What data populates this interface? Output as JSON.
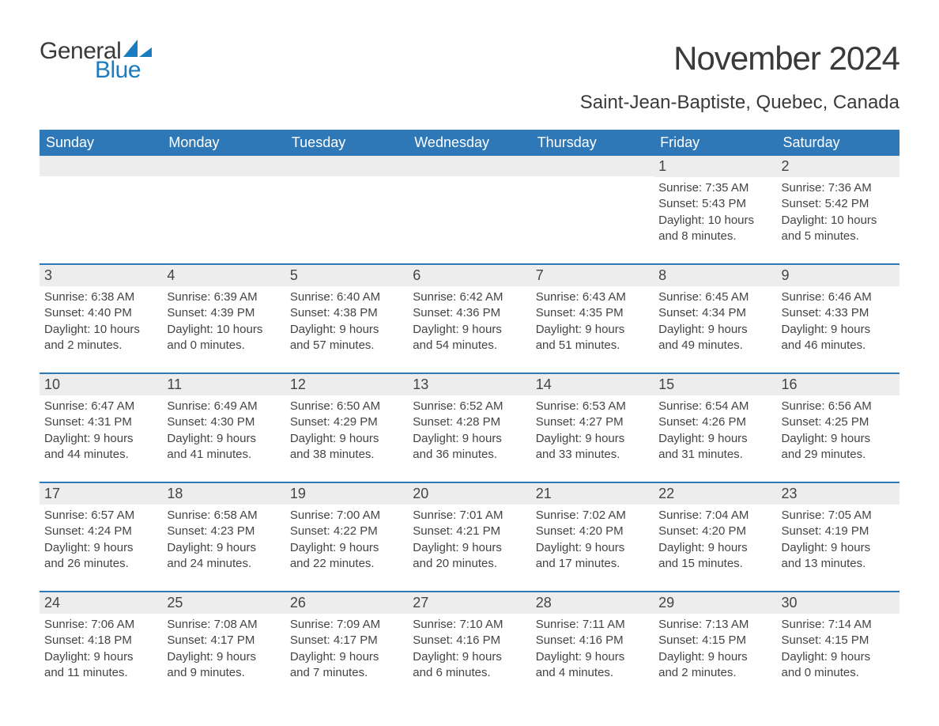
{
  "logo": {
    "text1": "General",
    "text2": "Blue"
  },
  "header": {
    "month_title": "November 2024",
    "location": "Saint-Jean-Baptiste, Quebec, Canada"
  },
  "colors": {
    "header_blue": "#2f78b7",
    "accent_blue": "#1a7bbf",
    "cell_bg": "#ededed",
    "text_dark": "#3a3a3a",
    "page_bg": "#ffffff"
  },
  "weekdays": [
    "Sunday",
    "Monday",
    "Tuesday",
    "Wednesday",
    "Thursday",
    "Friday",
    "Saturday"
  ],
  "weeks": [
    [
      {
        "blank": true
      },
      {
        "blank": true
      },
      {
        "blank": true
      },
      {
        "blank": true
      },
      {
        "blank": true
      },
      {
        "n": "1",
        "sunrise": "Sunrise: 7:35 AM",
        "sunset": "Sunset: 5:43 PM",
        "d1": "Daylight: 10 hours",
        "d2": "and 8 minutes."
      },
      {
        "n": "2",
        "sunrise": "Sunrise: 7:36 AM",
        "sunset": "Sunset: 5:42 PM",
        "d1": "Daylight: 10 hours",
        "d2": "and 5 minutes."
      }
    ],
    [
      {
        "n": "3",
        "sunrise": "Sunrise: 6:38 AM",
        "sunset": "Sunset: 4:40 PM",
        "d1": "Daylight: 10 hours",
        "d2": "and 2 minutes."
      },
      {
        "n": "4",
        "sunrise": "Sunrise: 6:39 AM",
        "sunset": "Sunset: 4:39 PM",
        "d1": "Daylight: 10 hours",
        "d2": "and 0 minutes."
      },
      {
        "n": "5",
        "sunrise": "Sunrise: 6:40 AM",
        "sunset": "Sunset: 4:38 PM",
        "d1": "Daylight: 9 hours",
        "d2": "and 57 minutes."
      },
      {
        "n": "6",
        "sunrise": "Sunrise: 6:42 AM",
        "sunset": "Sunset: 4:36 PM",
        "d1": "Daylight: 9 hours",
        "d2": "and 54 minutes."
      },
      {
        "n": "7",
        "sunrise": "Sunrise: 6:43 AM",
        "sunset": "Sunset: 4:35 PM",
        "d1": "Daylight: 9 hours",
        "d2": "and 51 minutes."
      },
      {
        "n": "8",
        "sunrise": "Sunrise: 6:45 AM",
        "sunset": "Sunset: 4:34 PM",
        "d1": "Daylight: 9 hours",
        "d2": "and 49 minutes."
      },
      {
        "n": "9",
        "sunrise": "Sunrise: 6:46 AM",
        "sunset": "Sunset: 4:33 PM",
        "d1": "Daylight: 9 hours",
        "d2": "and 46 minutes."
      }
    ],
    [
      {
        "n": "10",
        "sunrise": "Sunrise: 6:47 AM",
        "sunset": "Sunset: 4:31 PM",
        "d1": "Daylight: 9 hours",
        "d2": "and 44 minutes."
      },
      {
        "n": "11",
        "sunrise": "Sunrise: 6:49 AM",
        "sunset": "Sunset: 4:30 PM",
        "d1": "Daylight: 9 hours",
        "d2": "and 41 minutes."
      },
      {
        "n": "12",
        "sunrise": "Sunrise: 6:50 AM",
        "sunset": "Sunset: 4:29 PM",
        "d1": "Daylight: 9 hours",
        "d2": "and 38 minutes."
      },
      {
        "n": "13",
        "sunrise": "Sunrise: 6:52 AM",
        "sunset": "Sunset: 4:28 PM",
        "d1": "Daylight: 9 hours",
        "d2": "and 36 minutes."
      },
      {
        "n": "14",
        "sunrise": "Sunrise: 6:53 AM",
        "sunset": "Sunset: 4:27 PM",
        "d1": "Daylight: 9 hours",
        "d2": "and 33 minutes."
      },
      {
        "n": "15",
        "sunrise": "Sunrise: 6:54 AM",
        "sunset": "Sunset: 4:26 PM",
        "d1": "Daylight: 9 hours",
        "d2": "and 31 minutes."
      },
      {
        "n": "16",
        "sunrise": "Sunrise: 6:56 AM",
        "sunset": "Sunset: 4:25 PM",
        "d1": "Daylight: 9 hours",
        "d2": "and 29 minutes."
      }
    ],
    [
      {
        "n": "17",
        "sunrise": "Sunrise: 6:57 AM",
        "sunset": "Sunset: 4:24 PM",
        "d1": "Daylight: 9 hours",
        "d2": "and 26 minutes."
      },
      {
        "n": "18",
        "sunrise": "Sunrise: 6:58 AM",
        "sunset": "Sunset: 4:23 PM",
        "d1": "Daylight: 9 hours",
        "d2": "and 24 minutes."
      },
      {
        "n": "19",
        "sunrise": "Sunrise: 7:00 AM",
        "sunset": "Sunset: 4:22 PM",
        "d1": "Daylight: 9 hours",
        "d2": "and 22 minutes."
      },
      {
        "n": "20",
        "sunrise": "Sunrise: 7:01 AM",
        "sunset": "Sunset: 4:21 PM",
        "d1": "Daylight: 9 hours",
        "d2": "and 20 minutes."
      },
      {
        "n": "21",
        "sunrise": "Sunrise: 7:02 AM",
        "sunset": "Sunset: 4:20 PM",
        "d1": "Daylight: 9 hours",
        "d2": "and 17 minutes."
      },
      {
        "n": "22",
        "sunrise": "Sunrise: 7:04 AM",
        "sunset": "Sunset: 4:20 PM",
        "d1": "Daylight: 9 hours",
        "d2": "and 15 minutes."
      },
      {
        "n": "23",
        "sunrise": "Sunrise: 7:05 AM",
        "sunset": "Sunset: 4:19 PM",
        "d1": "Daylight: 9 hours",
        "d2": "and 13 minutes."
      }
    ],
    [
      {
        "n": "24",
        "sunrise": "Sunrise: 7:06 AM",
        "sunset": "Sunset: 4:18 PM",
        "d1": "Daylight: 9 hours",
        "d2": "and 11 minutes."
      },
      {
        "n": "25",
        "sunrise": "Sunrise: 7:08 AM",
        "sunset": "Sunset: 4:17 PM",
        "d1": "Daylight: 9 hours",
        "d2": "and 9 minutes."
      },
      {
        "n": "26",
        "sunrise": "Sunrise: 7:09 AM",
        "sunset": "Sunset: 4:17 PM",
        "d1": "Daylight: 9 hours",
        "d2": "and 7 minutes."
      },
      {
        "n": "27",
        "sunrise": "Sunrise: 7:10 AM",
        "sunset": "Sunset: 4:16 PM",
        "d1": "Daylight: 9 hours",
        "d2": "and 6 minutes."
      },
      {
        "n": "28",
        "sunrise": "Sunrise: 7:11 AM",
        "sunset": "Sunset: 4:16 PM",
        "d1": "Daylight: 9 hours",
        "d2": "and 4 minutes."
      },
      {
        "n": "29",
        "sunrise": "Sunrise: 7:13 AM",
        "sunset": "Sunset: 4:15 PM",
        "d1": "Daylight: 9 hours",
        "d2": "and 2 minutes."
      },
      {
        "n": "30",
        "sunrise": "Sunrise: 7:14 AM",
        "sunset": "Sunset: 4:15 PM",
        "d1": "Daylight: 9 hours",
        "d2": "and 0 minutes."
      }
    ]
  ]
}
